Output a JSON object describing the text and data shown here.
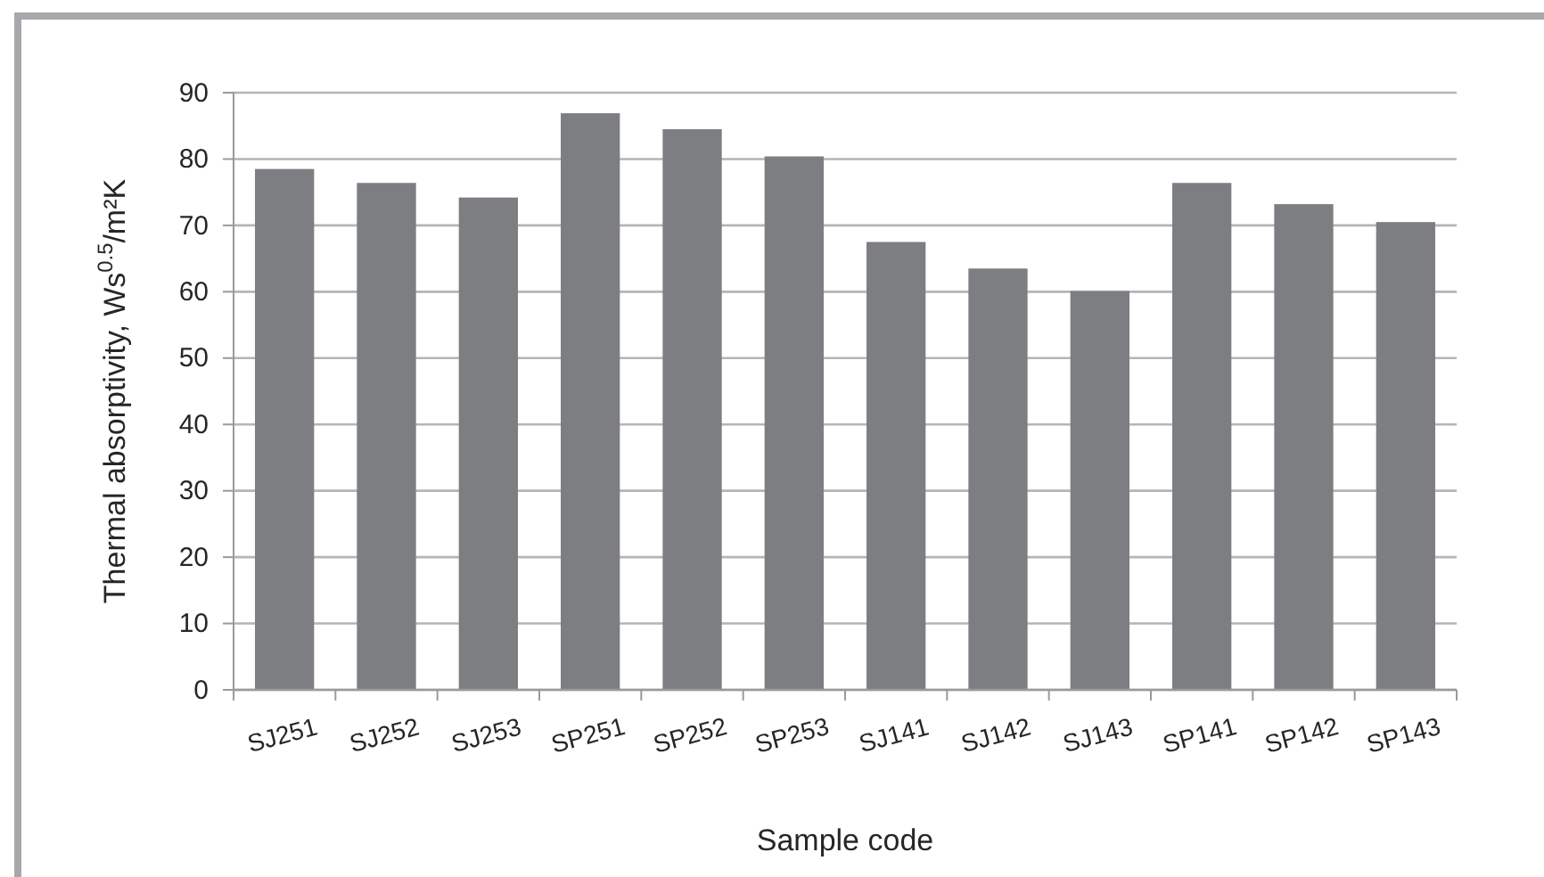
{
  "chart_data": {
    "type": "bar",
    "xlabel": "Sample code",
    "ylabel": "Thermal absorptivity, Ws$^{0.5}$/m²K",
    "categories": [
      "SJ251",
      "SJ252",
      "SJ253",
      "SP251",
      "SP252",
      "SP253",
      "SJ141",
      "SJ142",
      "SJ143",
      "SP141",
      "SP142",
      "SP143"
    ],
    "values": [
      78.5,
      76.4,
      74.2,
      86.9,
      84.5,
      80.4,
      67.5,
      63.5,
      60.1,
      76.4,
      73.2,
      70.5
    ],
    "color": "#7d7e82",
    "ylim": [
      0,
      90
    ],
    "yticks": [
      0,
      10,
      20,
      30,
      40,
      50,
      60,
      70,
      80,
      90
    ],
    "grid": "y"
  }
}
